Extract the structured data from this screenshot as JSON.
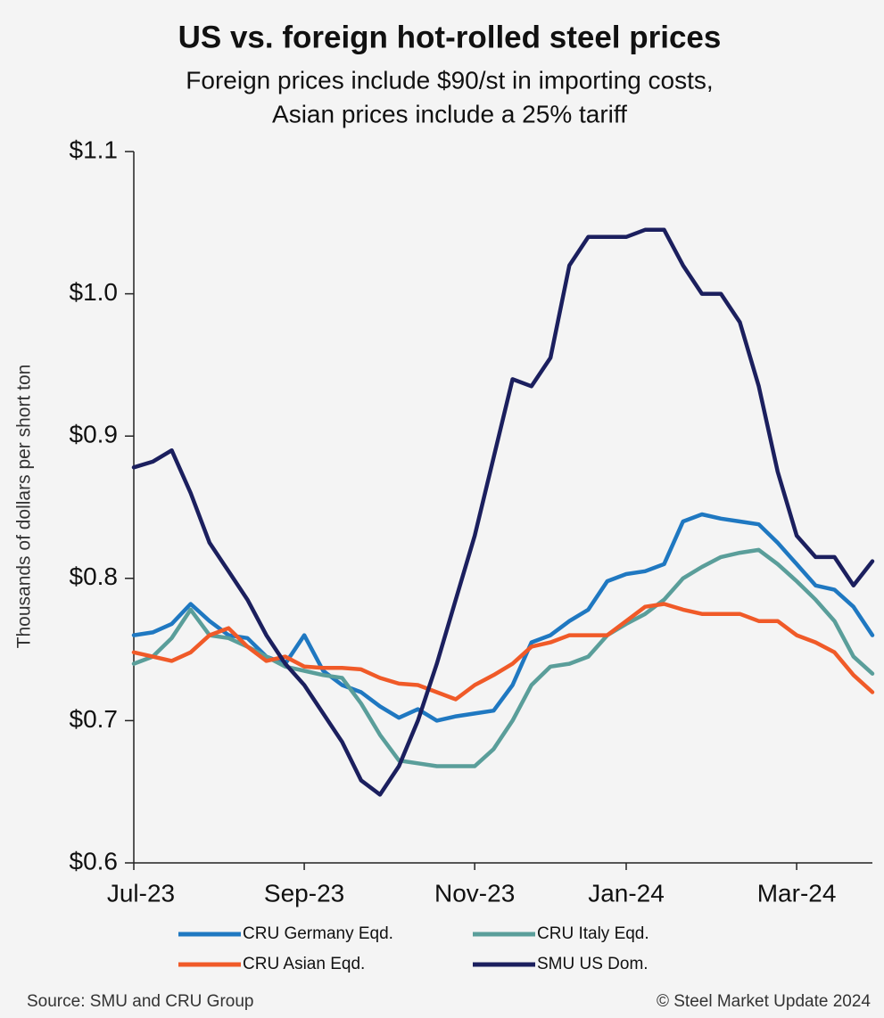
{
  "chart_data": {
    "type": "line",
    "title": "US vs. foreign hot-rolled steel prices",
    "subtitle": [
      "Foreign prices include $90/st in importing costs,",
      "Asian prices include a 25% tariff"
    ],
    "y_label": "Thousands of dollars per short ton",
    "source": "Source: SMU and CRU Group",
    "copyright": "© Steel Market Update 2024",
    "categories": [
      "Jul-23",
      null,
      null,
      null,
      null,
      null,
      null,
      null,
      null,
      "Sep-23",
      null,
      null,
      null,
      null,
      null,
      null,
      null,
      null,
      "Nov-23",
      null,
      null,
      null,
      null,
      null,
      null,
      null,
      "Jan-24",
      null,
      null,
      null,
      null,
      null,
      null,
      null,
      null,
      "Mar-24",
      null,
      null,
      null,
      null
    ],
    "ylim": [
      0.6,
      1.1
    ],
    "yticks": [
      {
        "value": 0.6,
        "label": "$0.6"
      },
      {
        "value": 0.7,
        "label": "$0.7"
      },
      {
        "value": 0.8,
        "label": "$0.8"
      },
      {
        "value": 0.9,
        "label": "$0.9"
      },
      {
        "value": 1.0,
        "label": "$1.0"
      },
      {
        "value": 1.1,
        "label": "$1.1"
      }
    ],
    "series": [
      {
        "name": "CRU Germany Eqd.",
        "color": "#1f78c1",
        "values": [
          0.76,
          0.762,
          0.768,
          0.782,
          0.77,
          0.76,
          0.758,
          0.745,
          0.74,
          0.76,
          0.735,
          0.725,
          0.72,
          0.71,
          0.702,
          0.708,
          0.7,
          0.703,
          0.705,
          0.707,
          0.725,
          0.755,
          0.76,
          0.77,
          0.778,
          0.798,
          0.803,
          0.805,
          0.81,
          0.84,
          0.845,
          0.842,
          0.84,
          0.838,
          0.825,
          0.81,
          0.795,
          0.792,
          0.78,
          0.76
        ]
      },
      {
        "name": "CRU Italy Eqd.",
        "color": "#5a9e9a",
        "values": [
          0.74,
          0.745,
          0.758,
          0.778,
          0.76,
          0.758,
          0.752,
          0.745,
          0.738,
          0.735,
          0.732,
          0.73,
          0.712,
          0.69,
          0.672,
          0.67,
          0.668,
          0.668,
          0.668,
          0.68,
          0.7,
          0.725,
          0.738,
          0.74,
          0.745,
          0.76,
          0.768,
          0.775,
          0.785,
          0.8,
          0.808,
          0.815,
          0.818,
          0.82,
          0.81,
          0.798,
          0.785,
          0.77,
          0.745,
          0.733
        ]
      },
      {
        "name": "CRU Asian Eqd.",
        "color": "#f05a28",
        "values": [
          0.748,
          0.745,
          0.742,
          0.748,
          0.76,
          0.765,
          0.752,
          0.742,
          0.745,
          0.738,
          0.737,
          0.737,
          0.736,
          0.73,
          0.726,
          0.725,
          0.72,
          0.715,
          0.725,
          0.732,
          0.74,
          0.752,
          0.755,
          0.76,
          0.76,
          0.76,
          0.77,
          0.78,
          0.782,
          0.778,
          0.775,
          0.775,
          0.775,
          0.77,
          0.77,
          0.76,
          0.755,
          0.748,
          0.732,
          0.72
        ]
      },
      {
        "name": "SMU US Dom.",
        "color": "#1b1f5e",
        "values": [
          0.878,
          0.882,
          0.89,
          0.86,
          0.825,
          0.805,
          0.785,
          0.76,
          0.74,
          0.725,
          0.705,
          0.685,
          0.658,
          0.648,
          0.668,
          0.7,
          0.74,
          0.785,
          0.83,
          0.885,
          0.94,
          0.935,
          0.955,
          1.02,
          1.04,
          1.04,
          1.04,
          1.045,
          1.045,
          1.02,
          1.0,
          1.0,
          0.98,
          0.935,
          0.875,
          0.83,
          0.815,
          0.815,
          0.795,
          0.812
        ]
      }
    ]
  }
}
